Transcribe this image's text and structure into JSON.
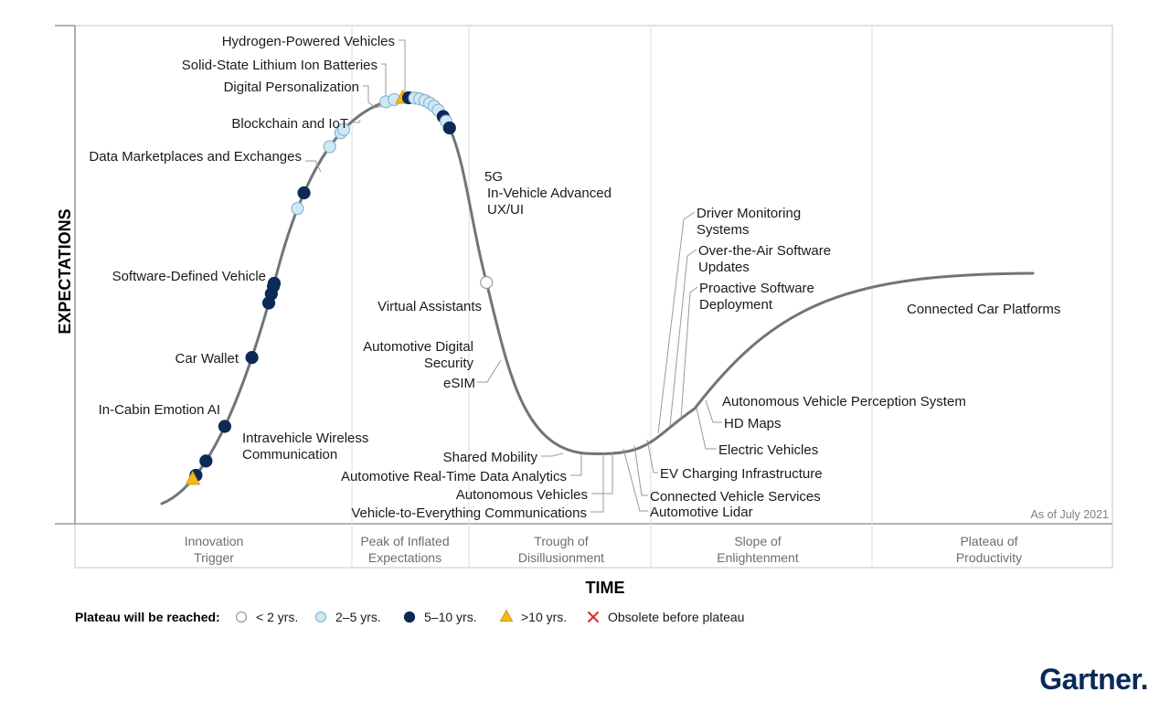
{
  "chart_data": {
    "type": "line",
    "title": "",
    "xlabel": "TIME",
    "ylabel": "EXPECTATIONS",
    "note": "As of July 2021",
    "grid": "vertical phase dividers",
    "phases": [
      {
        "label_lines": [
          "Innovation",
          "Trigger"
        ]
      },
      {
        "label_lines": [
          "Peak of Inflated",
          "Expectations"
        ]
      },
      {
        "label_lines": [
          "Trough of",
          "Disillusionment"
        ]
      },
      {
        "label_lines": [
          "Slope of",
          "Enlightenment"
        ]
      },
      {
        "label_lines": [
          "Plateau of",
          "Productivity"
        ]
      }
    ],
    "legend": {
      "title": "Plateau will be reached:",
      "placement": "bottom-left",
      "entries": [
        {
          "key": "lt2",
          "label": "< 2 yrs.",
          "marker": "circle",
          "fill": "#ffffff",
          "stroke": "#9a9a9a"
        },
        {
          "key": "2to5",
          "label": "2–5 yrs.",
          "marker": "circle",
          "fill": "#cfe8f6",
          "stroke": "#8fb4cc"
        },
        {
          "key": "5to10",
          "label": "5–10 yrs.",
          "marker": "circle",
          "fill": "#0b2a56",
          "stroke": "#0b2a56"
        },
        {
          "key": "gt10",
          "label": ">10 yrs.",
          "marker": "triangle",
          "fill": "#f3b81e",
          "stroke": "#d99a00"
        },
        {
          "key": "obsolete",
          "label": "Obsolete before plateau",
          "marker": "cross",
          "fill": "#e03030",
          "stroke": "#e03030"
        }
      ]
    },
    "technologies": [
      {
        "name": "In-Cabin Emotion AI",
        "category": "5to10",
        "t": 0.25
      },
      {
        "name": "Intravehicle Wireless Communication",
        "category": "gt10",
        "t": 0.225
      },
      {
        "name": "Car Wallet",
        "category": "5to10",
        "t": 0.33
      },
      {
        "name": "Software-Defined Vehicle",
        "category": "5to10",
        "t": 0.49
      },
      {
        "name": "Data Marketplaces and Exchanges",
        "category": "5to10",
        "t": 0.75
      },
      {
        "name": "Blockchain and IoT",
        "category": "5to10",
        "t": 0.935
      },
      {
        "name": "Solid-State Lithium Ion Batteries",
        "category": "5to10",
        "t": 0.965
      },
      {
        "name": "Digital Personalization",
        "category": "5to10",
        "t": 0.99
      },
      {
        "name": "Hydrogen-Powered Vehicles",
        "category": "5to10",
        "t": 1.0
      },
      {
        "name": "5G",
        "category": "2to5",
        "t": 1.25
      },
      {
        "name": "In-Vehicle Advanced UX/UI",
        "category": "5to10",
        "t": 1.31
      },
      {
        "name": "Virtual Assistants",
        "category": "2to5",
        "t": 1.52
      },
      {
        "name": "Automotive Digital Security",
        "category": "2to5",
        "t": 1.6
      },
      {
        "name": "eSIM",
        "category": "2to5",
        "t": 1.62
      },
      {
        "name": "Shared Mobility",
        "category": "2to5",
        "t": 1.88
      },
      {
        "name": "Automotive Real-Time Data Analytics",
        "category": "2to5",
        "t": 1.925
      },
      {
        "name": "Vehicle-to-Everything Communications",
        "category": "gt10",
        "t": 1.97
      },
      {
        "name": "Autonomous Vehicles",
        "category": "5to10",
        "t": 2.0
      },
      {
        "name": "Automotive Lidar",
        "category": "2to5",
        "t": 2.04
      },
      {
        "name": "Connected Vehicle Services",
        "category": "2to5",
        "t": 2.075
      },
      {
        "name": "EV Charging Infrastructure",
        "category": "2to5",
        "t": 2.115
      },
      {
        "name": "Driver Monitoring Systems",
        "category": "2to5",
        "t": 2.155
      },
      {
        "name": "Over-the-Air Software Updates",
        "category": "2to5",
        "t": 2.195
      },
      {
        "name": "Proactive Software Deployment",
        "category": "2to5",
        "t": 2.235
      },
      {
        "name": "Electric Vehicles",
        "category": "5to10",
        "t": 2.29
      },
      {
        "name": "HD Maps",
        "category": "2to5",
        "t": 2.325
      },
      {
        "name": "Autonomous Vehicle Perception System",
        "category": "5to10",
        "t": 2.37
      },
      {
        "name": "Connected Car Platforms",
        "category": "lt2",
        "t": 3.03
      }
    ]
  },
  "brand": "Gartner."
}
